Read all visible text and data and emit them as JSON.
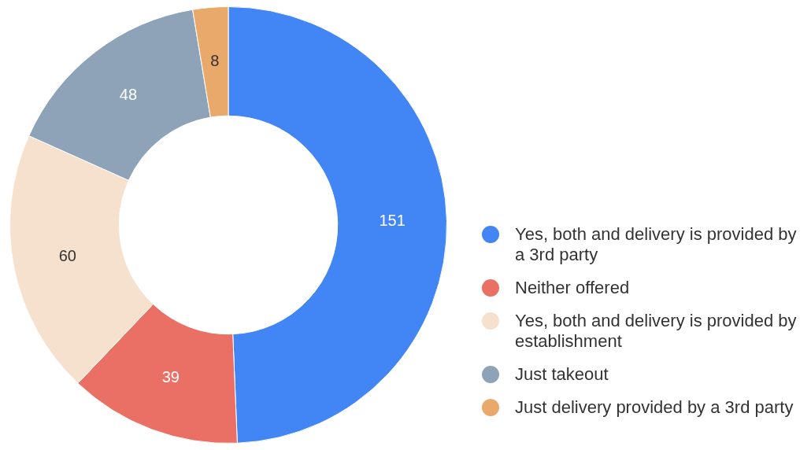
{
  "chart_data": {
    "type": "donut",
    "categories": [
      "Yes, both and delivery is provided by a 3rd party",
      "Neither offered",
      "Yes, both and delivery is provided by establishment",
      "Just takeout",
      "Just delivery provided by a 3rd party"
    ],
    "values": [
      151,
      39,
      60,
      48,
      8
    ],
    "colors": [
      "#4285f4",
      "#ea7066",
      "#f5e1cd",
      "#8ea3b8",
      "#e8a96b"
    ],
    "data_labels": true,
    "legend": "right"
  }
}
